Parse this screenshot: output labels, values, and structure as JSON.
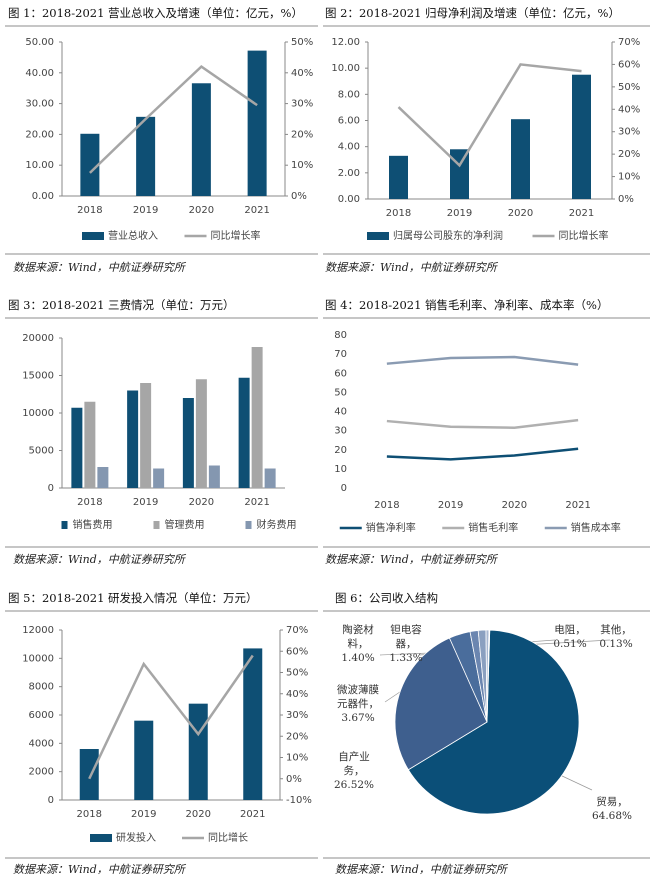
{
  "chart_data": [
    {
      "type": "bar",
      "title": "图 1：2018-2021 营业总收入及增速（单位：亿元，%）",
      "source": "数据来源：Wind，中航证券研究所",
      "categories": [
        "2018",
        "2019",
        "2020",
        "2021"
      ],
      "ylim": [
        0,
        50
      ],
      "yticks": [
        {
          "value": 0,
          "label": "0.00"
        },
        {
          "value": 10,
          "label": "10.00"
        },
        {
          "value": 20,
          "label": "20.00"
        },
        {
          "value": 30,
          "label": "30.00"
        },
        {
          "value": 40,
          "label": "40.00"
        },
        {
          "value": 50,
          "label": "50.00"
        }
      ],
      "y2lim": [
        0,
        50
      ],
      "y2ticks": [
        {
          "value": 0,
          "label": "0%"
        },
        {
          "value": 10,
          "label": "10%"
        },
        {
          "value": 20,
          "label": "20%"
        },
        {
          "value": 30,
          "label": "30%"
        },
        {
          "value": 40,
          "label": "40%"
        },
        {
          "value": 50,
          "label": "50%"
        }
      ],
      "series": [
        {
          "name": "营业总收入",
          "color": "#0e4f74",
          "values": [
            20.2,
            25.7,
            36.6,
            47.2
          ]
        },
        {
          "name": "同比增长率",
          "color": "#a6a6a6",
          "type": "line",
          "axis": "y2",
          "values": [
            7.5,
            25,
            42,
            29.5
          ]
        }
      ]
    },
    {
      "type": "bar",
      "title": "图 2：2018-2021 归母净利润及增速（单位：亿元，%）",
      "source": "数据来源：Wind，中航证券研究所",
      "categories": [
        "2018",
        "2019",
        "2020",
        "2021"
      ],
      "ylim": [
        0,
        12
      ],
      "yticks": [
        {
          "value": 0,
          "label": "0.00"
        },
        {
          "value": 2,
          "label": "2.00"
        },
        {
          "value": 4,
          "label": "4.00"
        },
        {
          "value": 6,
          "label": "6.00"
        },
        {
          "value": 8,
          "label": "8.00"
        },
        {
          "value": 10,
          "label": "10.00"
        },
        {
          "value": 12,
          "label": "12.00"
        }
      ],
      "y2lim": [
        0,
        70
      ],
      "y2ticks": [
        {
          "value": 0,
          "label": "0%"
        },
        {
          "value": 10,
          "label": "10%"
        },
        {
          "value": 20,
          "label": "20%"
        },
        {
          "value": 30,
          "label": "30%"
        },
        {
          "value": 40,
          "label": "40%"
        },
        {
          "value": 50,
          "label": "50%"
        },
        {
          "value": 60,
          "label": "60%"
        },
        {
          "value": 70,
          "label": "70%"
        }
      ],
      "series": [
        {
          "name": "归属母公司股东的净利润",
          "color": "#0e4f74",
          "values": [
            3.3,
            3.8,
            6.1,
            9.5
          ]
        },
        {
          "name": "同比增长率",
          "color": "#a6a6a6",
          "type": "line",
          "axis": "y2",
          "values": [
            41,
            15,
            60,
            57
          ]
        }
      ]
    },
    {
      "type": "bar",
      "title": "图 3：2018-2021 三费情况（单位：万元）",
      "source": "数据来源：Wind，中航证券研究所",
      "categories": [
        "2018",
        "2019",
        "2020",
        "2021"
      ],
      "ylim": [
        0,
        20000
      ],
      "yticks": [
        0,
        5000,
        10000,
        15000,
        20000
      ],
      "series": [
        {
          "name": "销售费用",
          "color": "#0e4f74",
          "values": [
            10700,
            13000,
            12000,
            14700
          ]
        },
        {
          "name": "管理费用",
          "color": "#a6a6a6",
          "values": [
            11500,
            14000,
            14500,
            18800
          ]
        },
        {
          "name": "财务费用",
          "color": "#8497b0",
          "values": [
            2800,
            2600,
            3000,
            2600
          ]
        }
      ]
    },
    {
      "type": "line",
      "title": "图 4：2018-2021 销售毛利率、净利率、成本率（%）",
      "source": "数据来源：Wind，中航证券研究所",
      "categories": [
        "2018",
        "2019",
        "2020",
        "2021"
      ],
      "ylim": [
        0,
        80
      ],
      "yticks": [
        0,
        10,
        20,
        30,
        40,
        50,
        60,
        70,
        80
      ],
      "series": [
        {
          "name": "销售净利率",
          "color": "#0e4f74",
          "values": [
            16.5,
            15,
            17,
            20.5
          ]
        },
        {
          "name": "销售毛利率",
          "color": "#b0b0b0",
          "values": [
            35,
            32,
            31.5,
            35.5
          ]
        },
        {
          "name": "销售成本率",
          "color": "#8a9bb2",
          "values": [
            65,
            68,
            68.5,
            64.5
          ]
        }
      ]
    },
    {
      "type": "bar",
      "title": "图 5：2018-2021 研发投入情况（单位：万元）",
      "source": "数据来源：Wind，中航证券研究所",
      "categories": [
        "2018",
        "2019",
        "2020",
        "2021"
      ],
      "ylim": [
        0,
        12000
      ],
      "yticks": [
        0,
        2000,
        4000,
        6000,
        8000,
        10000,
        12000
      ],
      "y2lim": [
        -10,
        70
      ],
      "y2ticks": [
        {
          "value": -10,
          "label": "-10%"
        },
        {
          "value": 0,
          "label": "0%"
        },
        {
          "value": 10,
          "label": "10%"
        },
        {
          "value": 20,
          "label": "20%"
        },
        {
          "value": 30,
          "label": "30%"
        },
        {
          "value": 40,
          "label": "40%"
        },
        {
          "value": 50,
          "label": "50%"
        },
        {
          "value": 60,
          "label": "60%"
        },
        {
          "value": 70,
          "label": "70%"
        }
      ],
      "series": [
        {
          "name": "研发投入",
          "color": "#0e4f74",
          "values": [
            3600,
            5600,
            6800,
            10700
          ]
        },
        {
          "name": "同比增长",
          "color": "#a6a6a6",
          "type": "line",
          "axis": "y2",
          "values": [
            0,
            54,
            21,
            58
          ]
        }
      ]
    },
    {
      "type": "pie",
      "title": "图 6：公司收入结构",
      "source": "数据来源：Wind，中航证券研究所",
      "categories": [
        "贸易，",
        "自产业务，",
        "微波薄膜元器件，",
        "陶瓷材料，",
        "钽电容器，",
        "电阻，",
        "其他，"
      ],
      "values": [
        64.68,
        26.52,
        3.67,
        1.4,
        1.33,
        0.51,
        0.13
      ],
      "value_labels": [
        "64.68%",
        "26.52%",
        "3.67%",
        "1.40%",
        "1.33%",
        "0.51%",
        "0.13%"
      ],
      "colors": [
        "#0b4f78",
        "#3e5f8e",
        "#4a6d9c",
        "#6b86b0",
        "#8aa0c0",
        "#a9b9d2",
        "#c5d0e0"
      ]
    }
  ]
}
